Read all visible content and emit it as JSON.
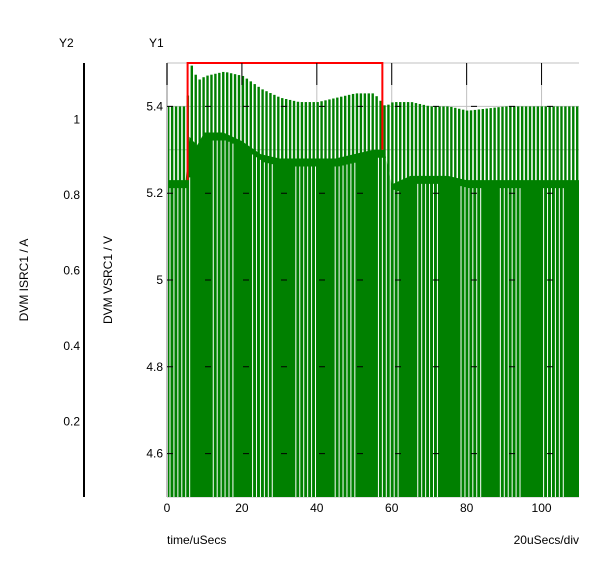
{
  "chart_data": {
    "type": "line",
    "title": "",
    "xlabel": "time/uSecs",
    "x_scale_label": "20uSecs/div",
    "y1": {
      "name": "Y1",
      "label": "DVM VSRC1 / V",
      "ylim": [
        4.5,
        5.5
      ],
      "ticks": [
        "4.6",
        "4.8",
        "5",
        "5.2",
        "5.4"
      ]
    },
    "y2": {
      "name": "Y2",
      "label": "DVM ISRC1 / A",
      "ylim": [
        0,
        1.15
      ],
      "ticks": [
        "0.2",
        "0.4",
        "0.6",
        "0.8",
        "1"
      ]
    },
    "xlim": [
      0,
      110
    ],
    "xticks": [
      "0",
      "20",
      "40",
      "60",
      "80",
      "100"
    ],
    "grid": true,
    "series": [
      {
        "name": "DVM VSRC1 upper envelope",
        "color": "#008000",
        "x": [
          0,
          5,
          6,
          8,
          10,
          15,
          20,
          25,
          30,
          35,
          40,
          45,
          50,
          55,
          58,
          60,
          65,
          70,
          75,
          80,
          90,
          100,
          110
        ],
        "y": [
          5.4,
          5.4,
          5.5,
          5.46,
          5.47,
          5.48,
          5.47,
          5.44,
          5.42,
          5.41,
          5.41,
          5.42,
          5.43,
          5.43,
          5.4,
          5.41,
          5.41,
          5.4,
          5.4,
          5.39,
          5.4,
          5.4,
          5.4
        ]
      },
      {
        "name": "DVM VSRC1 lower envelope",
        "color": "#008000",
        "x": [
          0,
          5,
          6,
          8,
          10,
          15,
          20,
          25,
          30,
          35,
          40,
          45,
          50,
          55,
          58,
          60,
          65,
          70,
          75,
          80,
          90,
          100,
          110
        ],
        "y": [
          5.23,
          5.23,
          5.33,
          5.31,
          5.34,
          5.34,
          5.32,
          5.29,
          5.28,
          5.28,
          5.28,
          5.28,
          5.29,
          5.3,
          5.3,
          5.22,
          5.24,
          5.24,
          5.24,
          5.23,
          5.23,
          5.23,
          5.23
        ]
      }
    ],
    "selection_box": {
      "color": "#ff0000",
      "x": [
        5.5,
        57.5
      ]
    }
  }
}
